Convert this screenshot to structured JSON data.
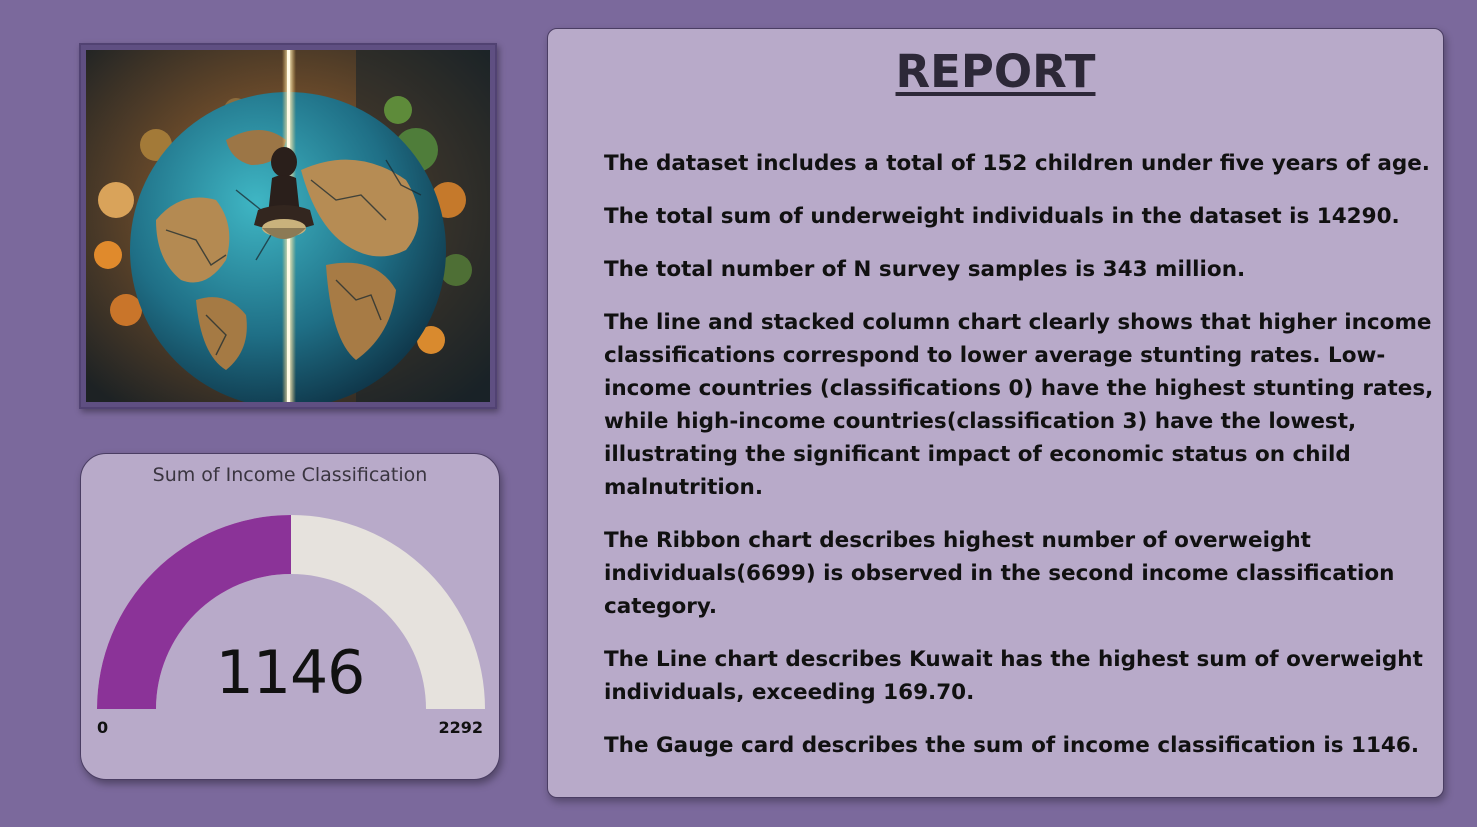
{
  "image": {
    "icon": "globe-hunger-illustration-icon"
  },
  "gauge": {
    "title": "Sum of Income Classification",
    "value": "1146",
    "min": "0",
    "max": "2292",
    "fraction": 0.5,
    "fill_color": "#8b3398",
    "track_color": "#e6e2dd"
  },
  "report": {
    "title": "REPORT",
    "paragraphs": [
      "The dataset includes a total of 152 children under five years of age.",
      "The total sum of underweight individuals in the dataset is 14290.",
      "The total number of N survey samples is 343 million.",
      "The line and stacked column chart clearly shows that higher income classifications correspond to lower average stunting rates. Low-income countries (classifications 0) have the highest stunting rates, while high-income countries(classification 3) have the lowest, illustrating the significant impact of economic status on child malnutrition.",
      "The Ribbon chart describes highest number of overweight individuals(6699) is observed in the second income classification category.",
      "The Line chart describes  Kuwait has the highest sum of overweight individuals, exceeding 169.70.",
      "The Gauge card describes the sum of income classification is 1146."
    ]
  },
  "colors": {
    "background": "#7b699c",
    "panel": "#b8aac9"
  }
}
